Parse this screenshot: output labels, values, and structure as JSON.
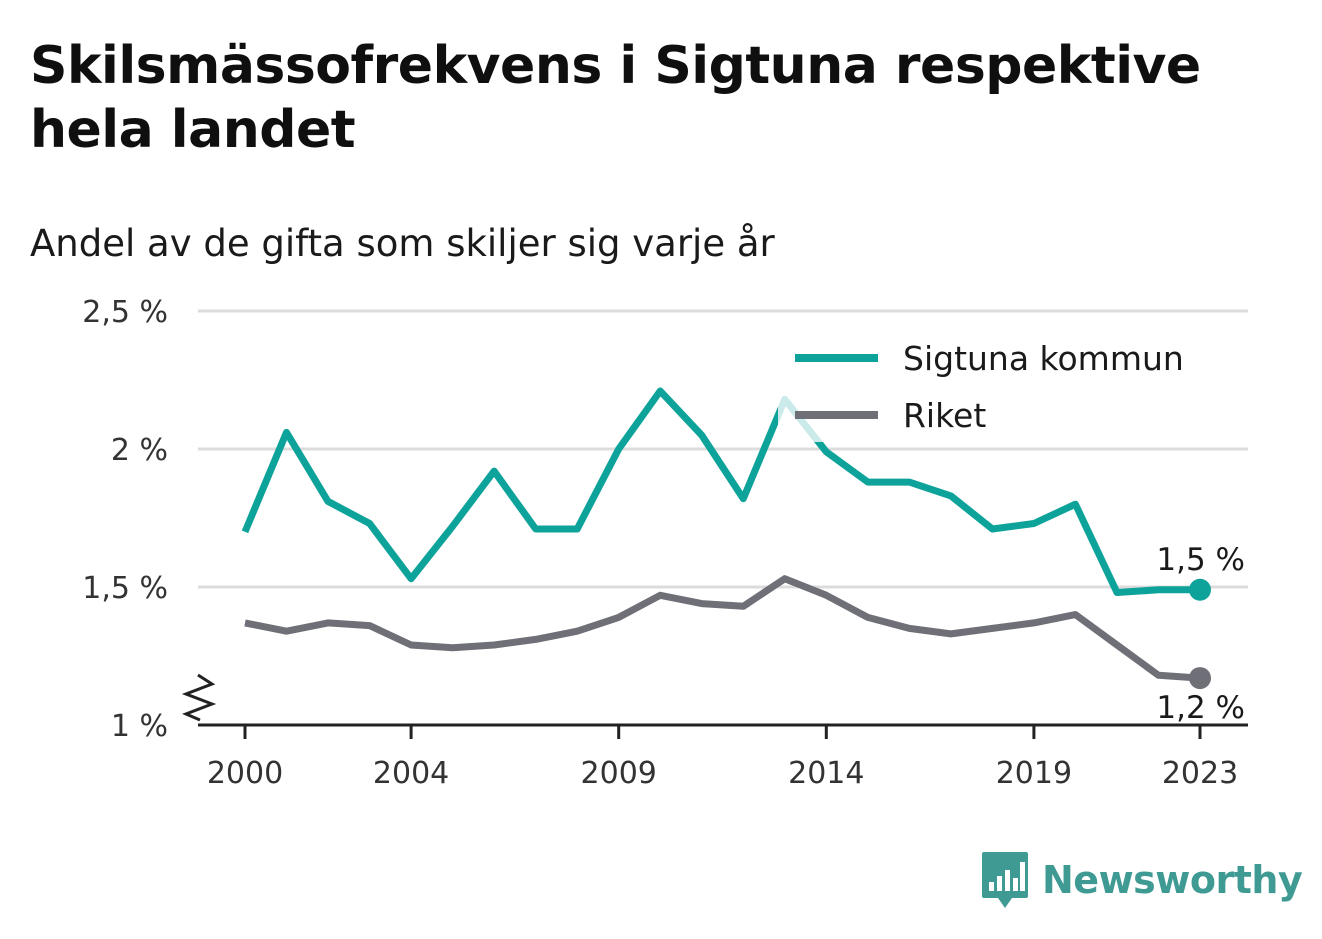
{
  "title": "Skilsmässofrekvens i Sigtuna respektive hela landet",
  "subtitle": "Andel av de gifta som skiljer sig varje år",
  "brand": {
    "name": "Newsworthy",
    "logo_icon": "bar-chart-speech-bubble-icon",
    "color": "#3f9a93"
  },
  "chart_data": {
    "type": "line",
    "x": [
      2000,
      2001,
      2002,
      2003,
      2004,
      2005,
      2006,
      2007,
      2008,
      2009,
      2010,
      2011,
      2012,
      2013,
      2014,
      2015,
      2016,
      2017,
      2018,
      2019,
      2020,
      2021,
      2022,
      2023
    ],
    "x_tick_values": [
      2000,
      2004,
      2009,
      2014,
      2019,
      2023
    ],
    "x_tick_labels": [
      "2000",
      "2004",
      "2009",
      "2014",
      "2019",
      "2023"
    ],
    "y_tick_values": [
      1,
      1.5,
      2,
      2.5
    ],
    "y_tick_labels": [
      "1 %",
      "1,5 %",
      "2 %",
      "2,5 %"
    ],
    "ylim": [
      1,
      2.5
    ],
    "y_axis_break": true,
    "grid": "horizontal",
    "legend_position": "top-right",
    "series": [
      {
        "name": "Sigtuna kommun",
        "color": "#0ea39a",
        "values": [
          1.7,
          2.06,
          1.81,
          1.73,
          1.53,
          1.72,
          1.92,
          1.71,
          1.71,
          2.0,
          2.21,
          2.05,
          1.82,
          2.18,
          1.99,
          1.88,
          1.88,
          1.83,
          1.71,
          1.73,
          1.8,
          1.48,
          1.49,
          1.49
        ],
        "end_label": "1,5 %"
      },
      {
        "name": "Riket",
        "color": "#6f6f77",
        "values": [
          1.37,
          1.34,
          1.37,
          1.36,
          1.29,
          1.28,
          1.29,
          1.31,
          1.34,
          1.39,
          1.47,
          1.44,
          1.43,
          1.53,
          1.47,
          1.39,
          1.35,
          1.33,
          1.35,
          1.37,
          1.4,
          1.29,
          1.18,
          1.17
        ],
        "end_label": "1,2 %"
      }
    ]
  }
}
